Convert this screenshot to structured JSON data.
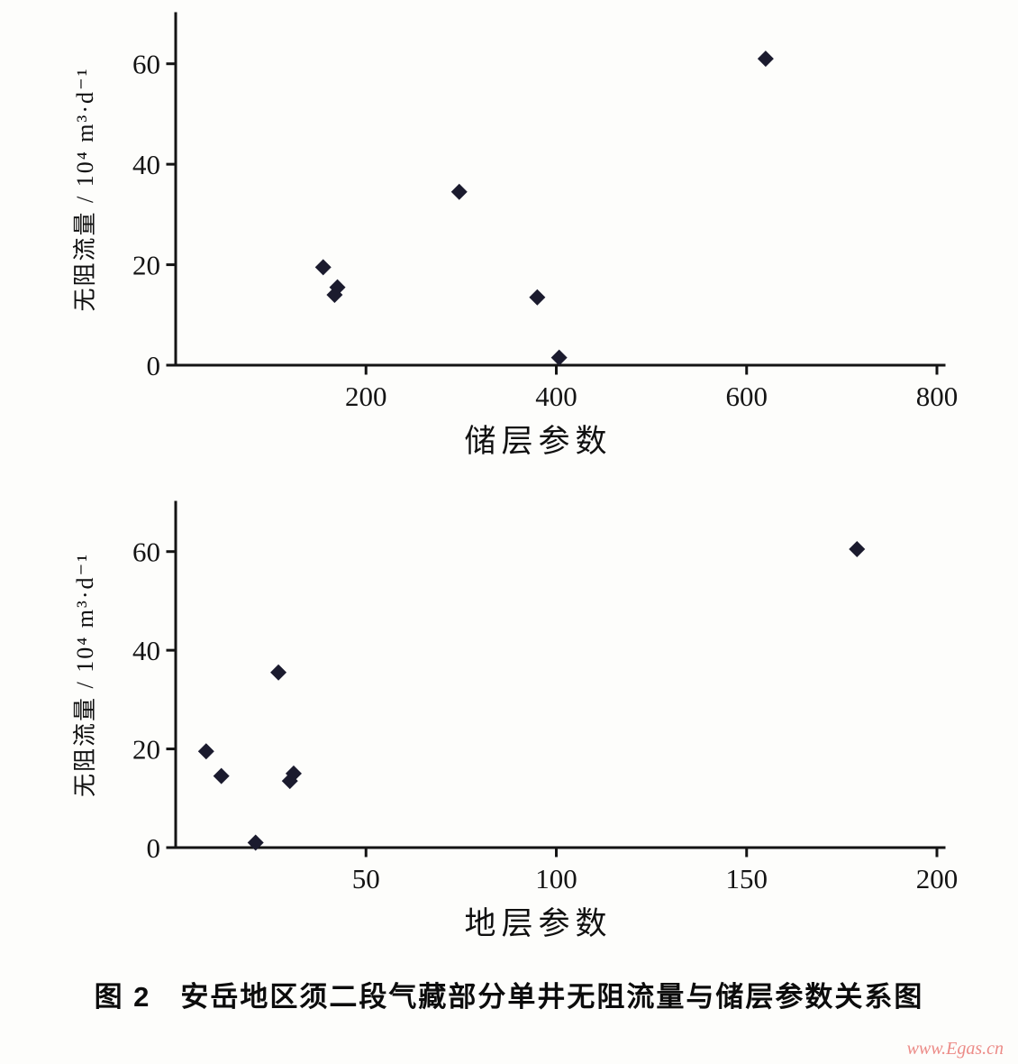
{
  "page": {
    "caption": "图 2　安岳地区须二段气藏部分单井无阻流量与储层参数关系图",
    "watermark": "www.Egas.cn"
  },
  "chart_data": [
    {
      "type": "scatter",
      "title": "",
      "xlabel": "储层参数",
      "ylabel": "无阻流量 / 10⁴ m³·d⁻¹",
      "xlim": [
        0,
        800
      ],
      "ylim": [
        0,
        70
      ],
      "x_ticks": [
        200,
        400,
        600,
        800
      ],
      "y_ticks": [
        0,
        20,
        40,
        60
      ],
      "grid": false,
      "legend": "none",
      "marker": "diamond",
      "marker_color": "#1b1b2e",
      "points": [
        {
          "x": 155,
          "y": 19.5
        },
        {
          "x": 170,
          "y": 15.5
        },
        {
          "x": 167,
          "y": 14
        },
        {
          "x": 298,
          "y": 34.5
        },
        {
          "x": 380,
          "y": 13.5
        },
        {
          "x": 403,
          "y": 1.5
        },
        {
          "x": 620,
          "y": 61
        }
      ]
    },
    {
      "type": "scatter",
      "title": "",
      "xlabel": "地层参数",
      "ylabel": "无阻流量 / 10⁴ m³·d⁻¹",
      "xlim": [
        0,
        200
      ],
      "ylim": [
        0,
        70
      ],
      "x_ticks": [
        50,
        100,
        150,
        200
      ],
      "y_ticks": [
        0,
        20,
        40,
        60
      ],
      "grid": false,
      "legend": "none",
      "marker": "diamond",
      "marker_color": "#1b1b2e",
      "points": [
        {
          "x": 8,
          "y": 19.5
        },
        {
          "x": 12,
          "y": 14.5
        },
        {
          "x": 21,
          "y": 1
        },
        {
          "x": 27,
          "y": 35.5
        },
        {
          "x": 31,
          "y": 15
        },
        {
          "x": 30,
          "y": 13.5
        },
        {
          "x": 179,
          "y": 60.5
        }
      ]
    }
  ]
}
